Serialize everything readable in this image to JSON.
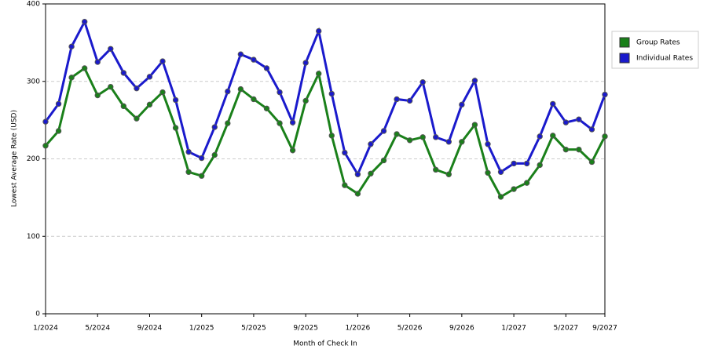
{
  "chart_data": {
    "type": "line",
    "x_label": "Month of Check In",
    "y_label": "Lowest Average Rate (USD)",
    "categories": [
      "1/2024",
      null,
      null,
      null,
      "5/2024",
      null,
      null,
      null,
      "9/2024",
      null,
      null,
      null,
      "1/2025",
      null,
      null,
      null,
      "5/2025",
      null,
      null,
      null,
      "9/2025",
      null,
      null,
      null,
      "1/2026",
      null,
      null,
      null,
      "5/2026",
      null,
      null,
      null,
      "9/2026",
      null,
      null,
      null,
      "1/2027",
      null,
      null,
      null,
      "5/2027",
      null,
      null,
      "9/2027"
    ],
    "series": [
      {
        "name": "Group Rates",
        "color": "#1a801a",
        "values": [
          217,
          236,
          305,
          317,
          282,
          293,
          268,
          252,
          270,
          286,
          240,
          183,
          178,
          205,
          246,
          290,
          277,
          265,
          246,
          211,
          275,
          310,
          230,
          166,
          155,
          181,
          198,
          232,
          224,
          228,
          186,
          180,
          222,
          244,
          182,
          151,
          161,
          169,
          192,
          230,
          212,
          212,
          196,
          229
        ]
      },
      {
        "name": "Individual Rates",
        "color": "#1a1acc",
        "values": [
          248,
          271,
          345,
          377,
          325,
          342,
          311,
          291,
          306,
          326,
          276,
          209,
          201,
          241,
          287,
          335,
          328,
          317,
          286,
          247,
          324,
          365,
          284,
          208,
          180,
          219,
          236,
          277,
          275,
          299,
          228,
          222,
          270,
          301,
          219,
          183,
          194,
          194,
          229,
          271,
          247,
          251,
          238,
          283
        ]
      }
    ],
    "ylim": [
      0,
      400
    ],
    "yticks": [
      0,
      100,
      200,
      300,
      400
    ],
    "grid": true,
    "legend": "right"
  }
}
